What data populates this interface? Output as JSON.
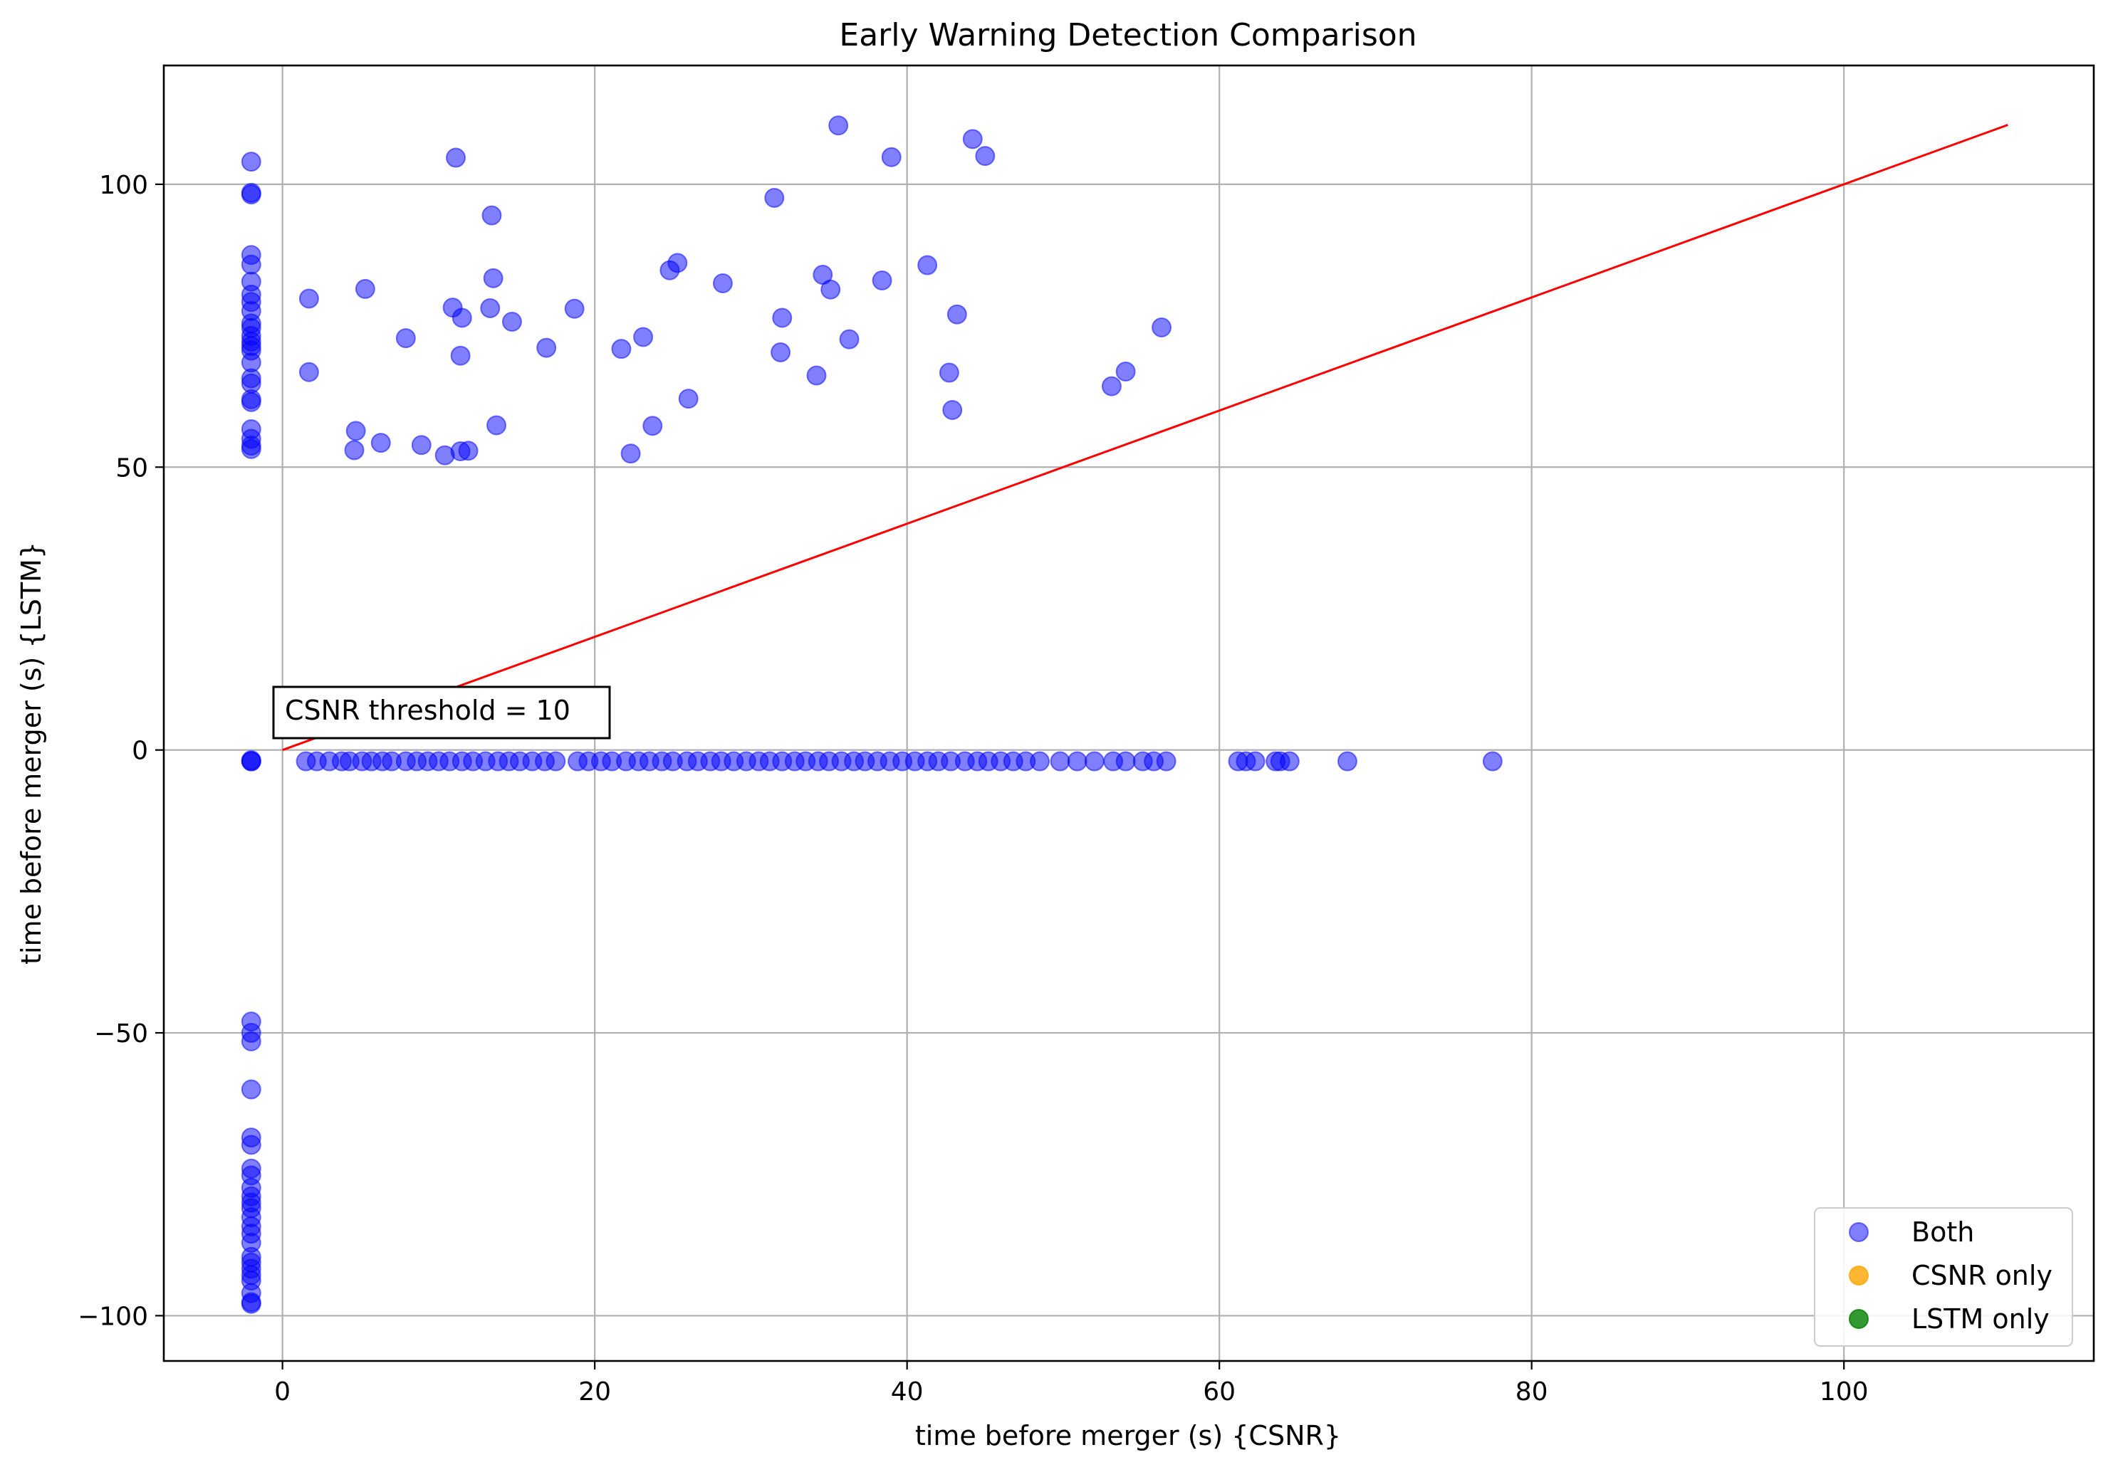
{
  "chart_data": {
    "type": "scatter",
    "title": "Early Warning Detection Comparison",
    "xlabel": "time before merger (s) {CSNR}",
    "ylabel": "time before merger (s) {LSTM}",
    "xlim": [
      -7.6,
      116.0
    ],
    "ylim": [
      -108.0,
      121.0
    ],
    "xticks": [
      0,
      20,
      40,
      60,
      80,
      100
    ],
    "yticks": [
      -100,
      -50,
      0,
      50,
      100
    ],
    "xtick_labels": [
      "0",
      "20",
      "40",
      "60",
      "80",
      "100"
    ],
    "ytick_labels": [
      "−100",
      "−50",
      "0",
      "50",
      "100"
    ],
    "grid": true,
    "legend_position": "lower-right",
    "annotation": {
      "text": "CSNR threshold = 10",
      "x": 0,
      "y": 0
    },
    "reference_line": {
      "x": [
        0,
        110.5
      ],
      "y": [
        0,
        110.5
      ],
      "color": "#ff0000"
    },
    "colors": {
      "both": "#0000ff",
      "csnr_only": "#ffa500",
      "lstm_only": "#008000",
      "line": "#ff0000",
      "grid": "#b0b0b0"
    },
    "series": [
      {
        "name": "Both",
        "color": "#0000ff",
        "points": [
          [
            -2,
            104
          ],
          [
            -2,
            98.5
          ],
          [
            -2,
            98.2
          ],
          [
            -2,
            87.5
          ],
          [
            -2,
            85.8
          ],
          [
            -2,
            82.8
          ],
          [
            -2,
            80.5
          ],
          [
            -2,
            79.2
          ],
          [
            -2,
            77.6
          ],
          [
            -2,
            75.4
          ],
          [
            -2,
            74.6
          ],
          [
            -2,
            73.2
          ],
          [
            -2,
            72.2
          ],
          [
            -2,
            71.4
          ],
          [
            -2,
            70.6
          ],
          [
            -2,
            68.5
          ],
          [
            -2,
            65.7
          ],
          [
            -2,
            64.8
          ],
          [
            -2,
            62.0
          ],
          [
            -2,
            61.5
          ],
          [
            -2,
            56.7
          ],
          [
            -2,
            55.0
          ],
          [
            -2,
            53.8
          ],
          [
            -2,
            53.2
          ],
          [
            1.7,
            79.8
          ],
          [
            1.7,
            66.8
          ],
          [
            4.6,
            53.0
          ],
          [
            4.7,
            56.4
          ],
          [
            5.3,
            81.5
          ],
          [
            6.3,
            54.3
          ],
          [
            7.9,
            72.8
          ],
          [
            8.9,
            53.9
          ],
          [
            10.4,
            52.1
          ],
          [
            10.9,
            78.2
          ],
          [
            11.1,
            104.7
          ],
          [
            11.4,
            69.7
          ],
          [
            11.4,
            52.8
          ],
          [
            11.5,
            76.4
          ],
          [
            11.9,
            52.9
          ],
          [
            13.3,
            78.1
          ],
          [
            13.4,
            94.5
          ],
          [
            13.5,
            83.4
          ],
          [
            13.7,
            57.4
          ],
          [
            14.7,
            75.7
          ],
          [
            16.9,
            71.1
          ],
          [
            18.7,
            78.0
          ],
          [
            21.7,
            70.9
          ],
          [
            22.3,
            52.4
          ],
          [
            23.1,
            73.0
          ],
          [
            23.7,
            57.3
          ],
          [
            24.8,
            84.8
          ],
          [
            25.3,
            86.1
          ],
          [
            26.0,
            62.1
          ],
          [
            28.2,
            82.5
          ],
          [
            31.5,
            97.6
          ],
          [
            31.9,
            70.3
          ],
          [
            32.0,
            76.4
          ],
          [
            34.2,
            66.2
          ],
          [
            34.6,
            84.0
          ],
          [
            35.1,
            81.4
          ],
          [
            35.6,
            110.4
          ],
          [
            36.3,
            72.6
          ],
          [
            38.4,
            83.0
          ],
          [
            39.0,
            104.8
          ],
          [
            41.3,
            85.7
          ],
          [
            42.7,
            66.7
          ],
          [
            42.9,
            60.1
          ],
          [
            43.2,
            77.0
          ],
          [
            44.2,
            108.0
          ],
          [
            45.0,
            105.0
          ],
          [
            53.1,
            64.3
          ],
          [
            54.0,
            66.9
          ],
          [
            56.3,
            74.7
          ],
          [
            -2,
            -2
          ],
          [
            -2,
            -2
          ],
          [
            -2,
            -1.8
          ],
          [
            1.5,
            -2
          ],
          [
            2.2,
            -2
          ],
          [
            3.0,
            -2
          ],
          [
            3.8,
            -2
          ],
          [
            4.3,
            -2
          ],
          [
            5.1,
            -2
          ],
          [
            5.7,
            -2
          ],
          [
            6.4,
            -2
          ],
          [
            7.0,
            -2
          ],
          [
            7.9,
            -2
          ],
          [
            8.6,
            -2
          ],
          [
            9.3,
            -2
          ],
          [
            10.0,
            -2
          ],
          [
            10.7,
            -2
          ],
          [
            11.5,
            -2
          ],
          [
            12.2,
            -2
          ],
          [
            13.0,
            -2
          ],
          [
            13.8,
            -2
          ],
          [
            14.5,
            -2
          ],
          [
            15.2,
            -2
          ],
          [
            16.0,
            -2
          ],
          [
            16.8,
            -2
          ],
          [
            17.5,
            -2
          ],
          [
            18.9,
            -2
          ],
          [
            19.6,
            -2
          ],
          [
            20.4,
            -2
          ],
          [
            21.1,
            -2
          ],
          [
            22.0,
            -2
          ],
          [
            22.8,
            -2
          ],
          [
            23.5,
            -2
          ],
          [
            24.3,
            -2
          ],
          [
            25.0,
            -2
          ],
          [
            25.9,
            -2
          ],
          [
            26.6,
            -2
          ],
          [
            27.4,
            -2
          ],
          [
            28.1,
            -2
          ],
          [
            28.9,
            -2
          ],
          [
            29.7,
            -2
          ],
          [
            30.5,
            -2
          ],
          [
            31.2,
            -2
          ],
          [
            32.0,
            -2
          ],
          [
            32.8,
            -2
          ],
          [
            33.5,
            -2
          ],
          [
            34.3,
            -2
          ],
          [
            35.0,
            -2
          ],
          [
            35.8,
            -2
          ],
          [
            36.6,
            -2
          ],
          [
            37.3,
            -2
          ],
          [
            38.1,
            -2
          ],
          [
            38.9,
            -2
          ],
          [
            39.7,
            -2
          ],
          [
            40.5,
            -2
          ],
          [
            41.3,
            -2
          ],
          [
            42.0,
            -2
          ],
          [
            42.8,
            -2
          ],
          [
            43.7,
            -2
          ],
          [
            44.5,
            -2
          ],
          [
            45.2,
            -2
          ],
          [
            46.0,
            -2
          ],
          [
            46.8,
            -2
          ],
          [
            47.6,
            -2
          ],
          [
            48.5,
            -2
          ],
          [
            49.8,
            -2
          ],
          [
            50.9,
            -2
          ],
          [
            52.0,
            -2
          ],
          [
            53.2,
            -2
          ],
          [
            54.0,
            -2
          ],
          [
            55.1,
            -2
          ],
          [
            55.8,
            -2
          ],
          [
            56.6,
            -2
          ],
          [
            61.2,
            -2
          ],
          [
            61.7,
            -2
          ],
          [
            62.3,
            -2
          ],
          [
            63.6,
            -2
          ],
          [
            63.9,
            -2
          ],
          [
            64.5,
            -2
          ],
          [
            68.2,
            -2
          ],
          [
            77.5,
            -2
          ],
          [
            -2,
            -48.0
          ],
          [
            -2,
            -50.0
          ],
          [
            -2,
            -51.5
          ],
          [
            -2,
            -60.0
          ],
          [
            -2,
            -68.5
          ],
          [
            -2,
            -69.8
          ],
          [
            -2,
            -74.0
          ],
          [
            -2,
            -75.2
          ],
          [
            -2,
            -77.4
          ],
          [
            -2,
            -78.9
          ],
          [
            -2,
            -80.0
          ],
          [
            -2,
            -81.0
          ],
          [
            -2,
            -82.6
          ],
          [
            -2,
            -84.2
          ],
          [
            -2,
            -85.5
          ],
          [
            -2,
            -87.1
          ],
          [
            -2,
            -89.6
          ],
          [
            -2,
            -90.6
          ],
          [
            -2,
            -91.7
          ],
          [
            -2,
            -92.8
          ],
          [
            -2,
            -93.8
          ],
          [
            -2,
            -96.0
          ],
          [
            -2,
            -97.6
          ],
          [
            -2,
            -97.9
          ]
        ]
      },
      {
        "name": "CSNR only",
        "color": "#ffa500",
        "points": []
      },
      {
        "name": "LSTM only",
        "color": "#008000",
        "points": []
      }
    ]
  }
}
